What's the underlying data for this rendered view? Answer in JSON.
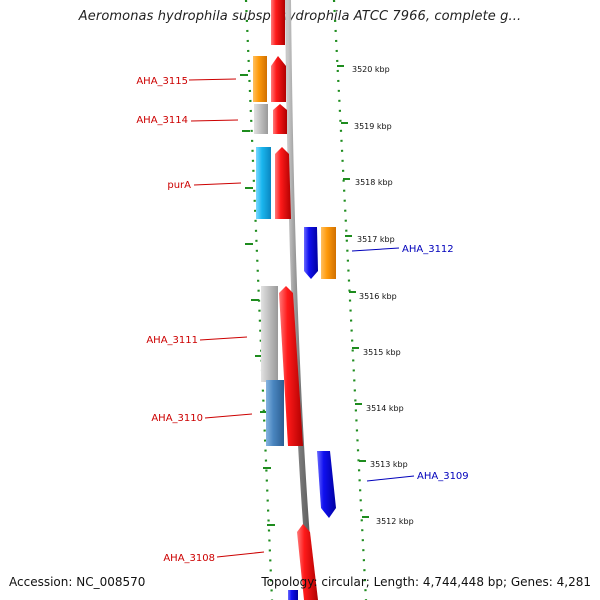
{
  "title": "Aeromonas hydrophila subsp. hydrophila ATCC 7966, complete g...",
  "accession": "Accession: NC_008570",
  "stats": "Topology: circular; Length: 4,744,448 bp; Genes: 4,281",
  "kbp_ticks": [
    "3520 kbp",
    "3519 kbp",
    "3518 kbp",
    "3517 kbp",
    "3516 kbp",
    "3515 kbp",
    "3514 kbp",
    "3513 kbp",
    "3512 kbp"
  ],
  "gene_labels": [
    {
      "name": "AHA_3115",
      "strand": "forward"
    },
    {
      "name": "AHA_3114",
      "strand": "forward"
    },
    {
      "name": "purA",
      "strand": "forward"
    },
    {
      "name": "AHA_3112",
      "strand": "reverse"
    },
    {
      "name": "AHA_3111",
      "strand": "forward"
    },
    {
      "name": "AHA_3110",
      "strand": "forward"
    },
    {
      "name": "AHA_3109",
      "strand": "reverse"
    },
    {
      "name": "AHA_3108",
      "strand": "forward"
    }
  ],
  "colors": {
    "forward_cds": "#e8141e",
    "reverse_cds": "#1414e6",
    "backbone": "#8a8a8a",
    "ruler_dots": "#1e8c1e",
    "forward_label": "#cc0000",
    "reverse_label": "#0000bb",
    "cog_orange": "#ff9a0a",
    "cog_grey": "#bdbdbd",
    "cog_cyan": "#1ab6ee",
    "cog_steel": "#4a86c0"
  }
}
